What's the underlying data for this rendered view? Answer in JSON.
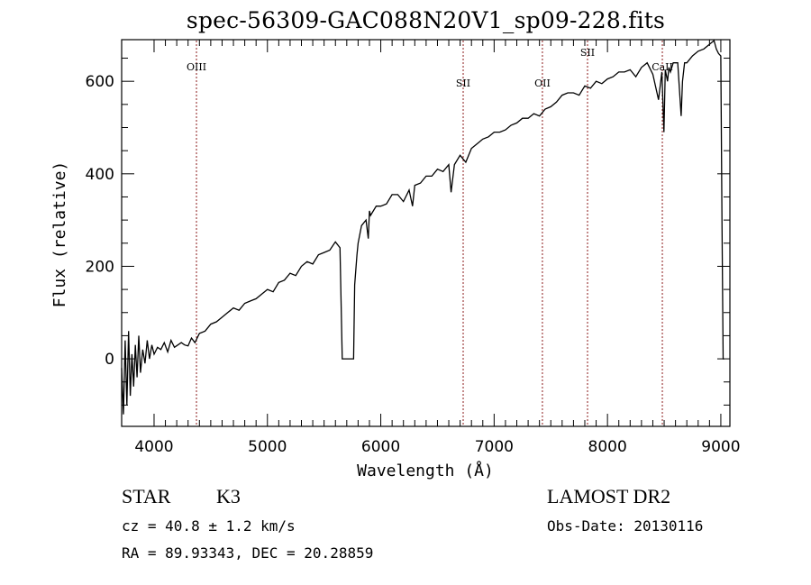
{
  "chart_data": {
    "type": "line",
    "title": "spec-56309-GAC088N20V1_sp09-228.fits",
    "xlabel": "Wavelength (Å)",
    "ylabel": "Flux (relative)",
    "xlim": [
      3714,
      9080
    ],
    "ylim": [
      -146,
      690
    ],
    "xticks": [
      4000,
      5000,
      6000,
      7000,
      8000,
      9000
    ],
    "xtick_labels": [
      "4000",
      "5000",
      "6000",
      "7000",
      "8000",
      "9000"
    ],
    "yticks": [
      0,
      200,
      400,
      600
    ],
    "ytick_labels": [
      "0",
      "200",
      "400",
      "600"
    ],
    "grid": false,
    "series": [
      {
        "name": "spectrum",
        "x": [
          3714,
          3730,
          3745,
          3760,
          3775,
          3790,
          3805,
          3820,
          3835,
          3850,
          3865,
          3880,
          3900,
          3920,
          3940,
          3960,
          3980,
          4000,
          4030,
          4060,
          4090,
          4120,
          4150,
          4180,
          4210,
          4240,
          4270,
          4300,
          4330,
          4360,
          4400,
          4450,
          4500,
          4550,
          4600,
          4650,
          4700,
          4750,
          4800,
          4850,
          4900,
          4950,
          5000,
          5050,
          5100,
          5150,
          5200,
          5250,
          5300,
          5350,
          5400,
          5450,
          5500,
          5550,
          5600,
          5640,
          5660,
          5680,
          5700,
          5760,
          5770,
          5790,
          5800,
          5830,
          5870,
          5890,
          5900,
          5910,
          5960,
          6000,
          6050,
          6100,
          6150,
          6200,
          6250,
          6280,
          6300,
          6350,
          6400,
          6450,
          6500,
          6550,
          6600,
          6620,
          6650,
          6700,
          6750,
          6800,
          6850,
          6900,
          6950,
          7000,
          7050,
          7100,
          7150,
          7200,
          7250,
          7300,
          7350,
          7400,
          7450,
          7500,
          7550,
          7600,
          7650,
          7700,
          7750,
          7800,
          7850,
          7900,
          7950,
          8000,
          8050,
          8100,
          8150,
          8200,
          8250,
          8300,
          8350,
          8400,
          8450,
          8480,
          8498,
          8510,
          8530,
          8542,
          8555,
          8580,
          8620,
          8650,
          8662,
          8680,
          8700,
          8750,
          8800,
          8850,
          8900,
          8940,
          8960,
          8980,
          9000,
          9010,
          9020,
          9030
        ],
        "y": [
          -20,
          -120,
          40,
          -100,
          60,
          -80,
          10,
          -60,
          30,
          -40,
          50,
          -30,
          20,
          -10,
          40,
          0,
          30,
          10,
          25,
          20,
          35,
          15,
          40,
          25,
          30,
          35,
          30,
          28,
          45,
          35,
          55,
          60,
          75,
          80,
          90,
          100,
          110,
          105,
          120,
          125,
          130,
          140,
          150,
          145,
          165,
          170,
          185,
          180,
          200,
          210,
          205,
          225,
          230,
          235,
          253,
          240,
          0,
          0,
          0,
          0,
          160,
          224,
          250,
          288,
          300,
          260,
          320,
          310,
          330,
          330,
          335,
          355,
          355,
          340,
          365,
          330,
          375,
          380,
          395,
          395,
          410,
          405,
          420,
          360,
          420,
          440,
          425,
          455,
          465,
          475,
          480,
          490,
          490,
          495,
          505,
          510,
          520,
          520,
          530,
          525,
          540,
          545,
          555,
          570,
          575,
          575,
          570,
          590,
          585,
          600,
          595,
          605,
          610,
          620,
          620,
          625,
          610,
          630,
          640,
          615,
          560,
          620,
          490,
          625,
          600,
          630,
          620,
          640,
          640,
          525,
          600,
          640,
          640,
          655,
          665,
          670,
          680,
          688,
          670,
          660,
          655,
          300,
          0,
          0
        ]
      }
    ],
    "annotations": [
      {
        "label": "OIII",
        "x": 4374
      },
      {
        "label": "SII",
        "x": 6727
      },
      {
        "label": "OII",
        "x": 7426
      },
      {
        "label": "SII",
        "x": 7824
      },
      {
        "label": "CaII",
        "x": 8484
      }
    ]
  },
  "info": {
    "object_class": "STAR",
    "subclass": "K3",
    "survey": "LAMOST DR2",
    "cz": "cz = 40.8 ± 1.2 km/s",
    "obs_date": "Obs-Date: 20130116",
    "coords": "RA =  89.93343, DEC =  20.28859"
  }
}
